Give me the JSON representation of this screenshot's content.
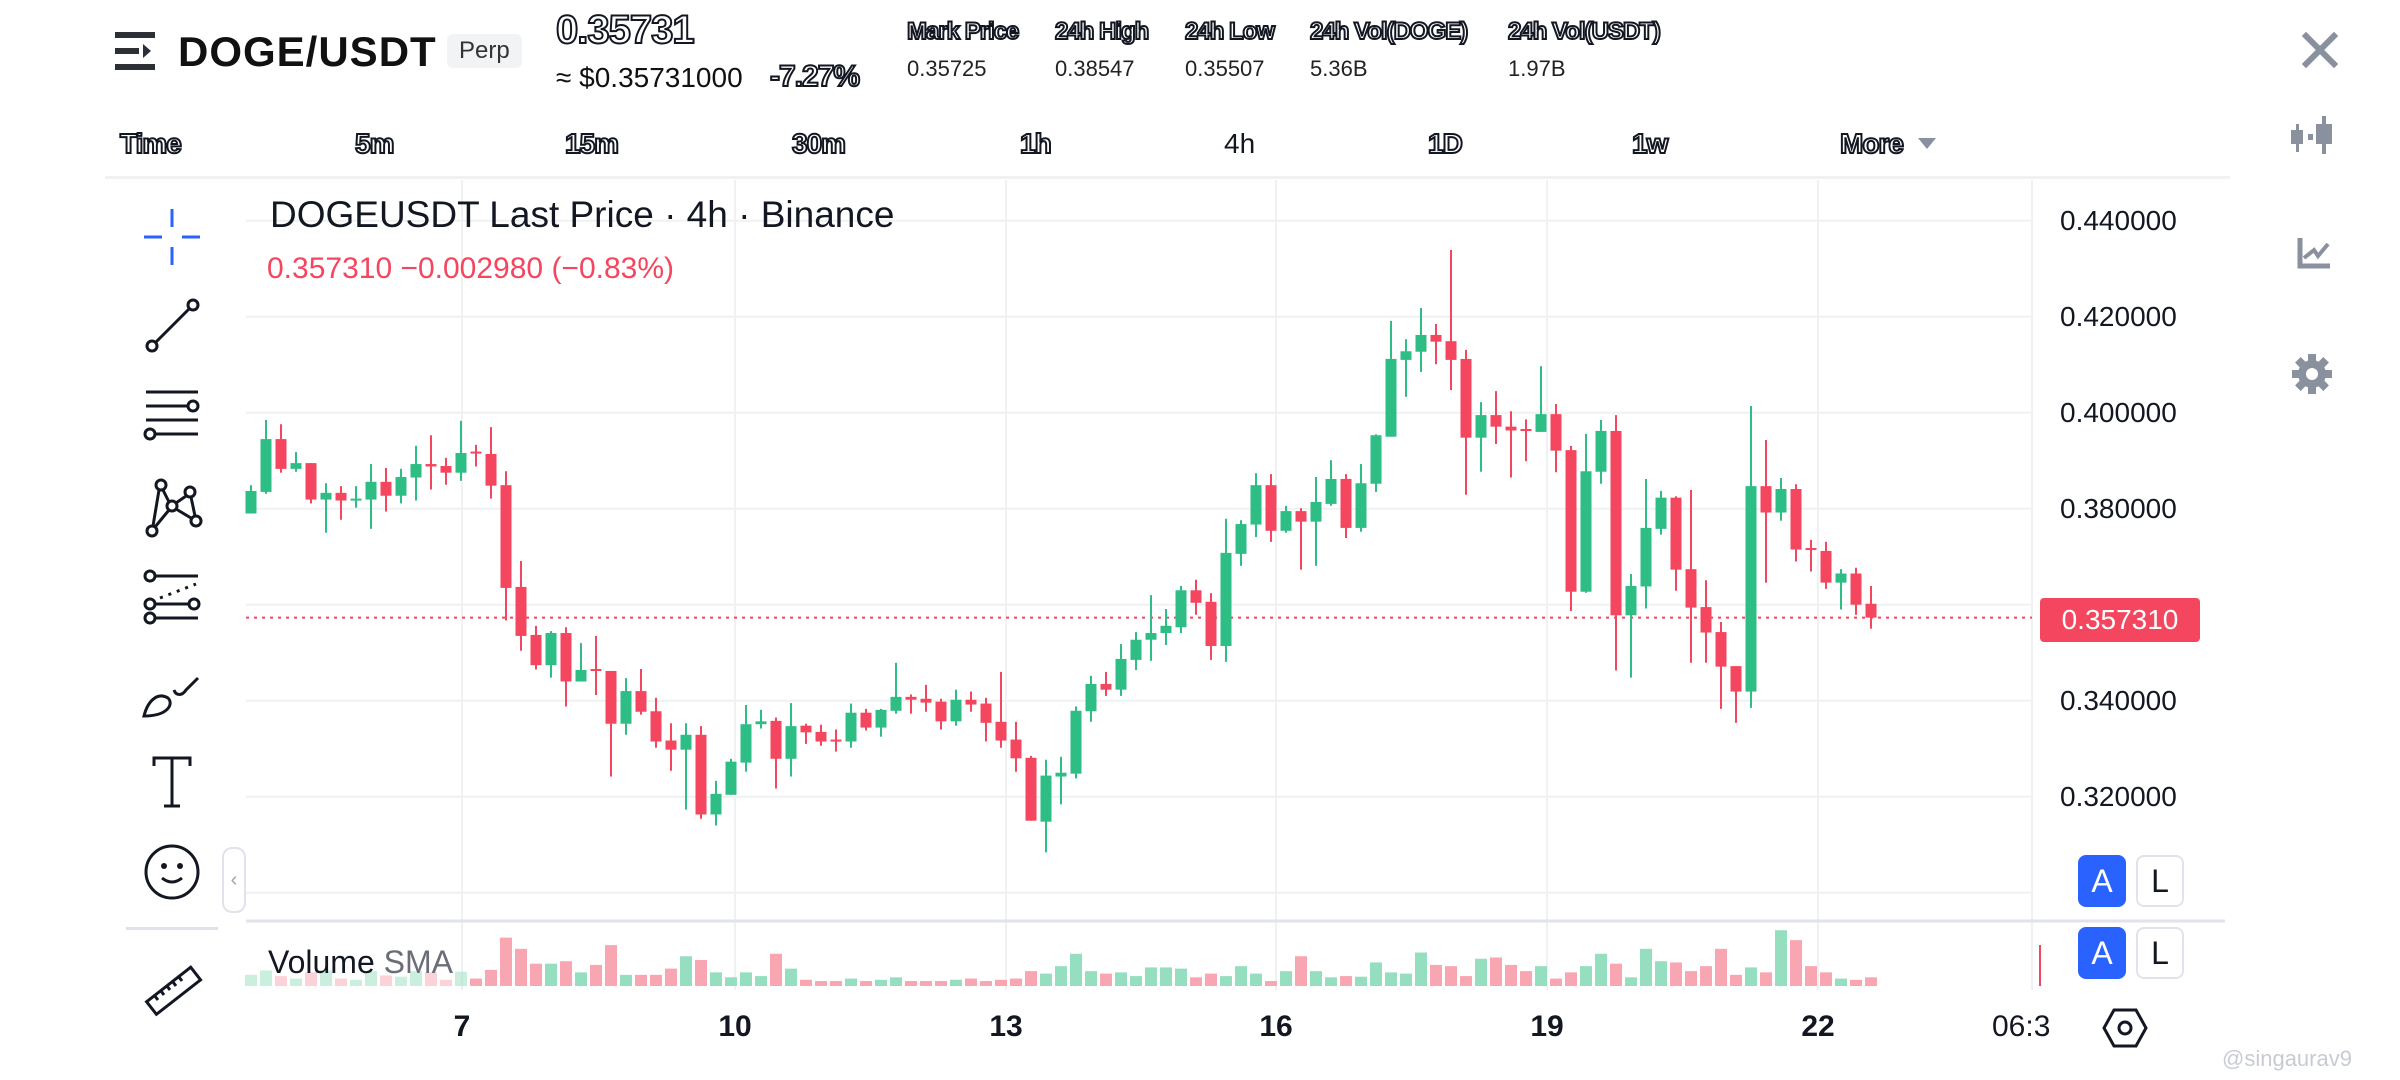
{
  "header": {
    "symbol": "DOGE/USDT",
    "contract_type": "Perp",
    "last_price": "0.35731",
    "usd_price": "≈ $0.35731000",
    "change_pct": "-7.27%",
    "stats": [
      {
        "label": "Mark Price",
        "value": "0.35725"
      },
      {
        "label": "24h High",
        "value": "0.38547"
      },
      {
        "label": "24h Low",
        "value": "0.35507"
      },
      {
        "label": "24h Vol(DOGE)",
        "value": "5.36B"
      },
      {
        "label": "24h Vol(USDT)",
        "value": "1.97B"
      }
    ]
  },
  "timeframes": {
    "items": [
      "Time",
      "5m",
      "15m",
      "30m",
      "1h",
      "4h",
      "1D",
      "1w",
      "More"
    ],
    "selected": "4h"
  },
  "right_icons": [
    "close-icon",
    "candlestick-icon",
    "indicator-icon",
    "gear-icon"
  ],
  "tools": [
    "crosshair-icon",
    "trend-line-icon",
    "horizontal-lines-icon",
    "pattern-icon",
    "fib-channel-icon",
    "brush-icon",
    "text-icon",
    "emoji-icon",
    "ruler-icon"
  ],
  "legend": {
    "title": "DOGEUSDT Last Price · 4h · Binance",
    "change": "0.357310  −0.002980 (−0.83%)"
  },
  "volume_label": {
    "main": "Volume",
    "sma": "SMA"
  },
  "current_price_label": "0.357310",
  "scale_buttons": {
    "auto": "A",
    "log": "L"
  },
  "collapse_glyph": "‹",
  "watermark": "@singaurav9",
  "colors": {
    "up": "#2ebd85",
    "down": "#f4465e",
    "up_vol": "#95dfc0",
    "down_vol": "#f8a6b1",
    "accent": "#2962ff"
  },
  "chart_data": {
    "type": "candlestick",
    "title": "DOGEUSDT Last Price · 4h · Binance",
    "xlabel": "",
    "ylabel": "",
    "y_ticks": [
      "0.440000",
      "0.420000",
      "0.400000",
      "0.380000",
      "0.340000",
      "0.320000"
    ],
    "ylim": [
      0.3,
      0.445
    ],
    "x_ticks": [
      {
        "label": "7",
        "index": 14.0
      },
      {
        "label": "10",
        "index": 32.2
      },
      {
        "label": "13",
        "index": 50.3
      },
      {
        "label": "16",
        "index": 68.2
      },
      {
        "label": "19",
        "index": 86.3
      },
      {
        "label": "22",
        "index": 104.5
      },
      {
        "label": "06:3",
        "index": 115.8
      }
    ],
    "last_price": 0.35731,
    "ohlc": [
      [
        0.379,
        0.3849,
        0.379,
        0.3837
      ],
      [
        0.3835,
        0.3985,
        0.3831,
        0.3945
      ],
      [
        0.3945,
        0.3976,
        0.3875,
        0.3883
      ],
      [
        0.3883,
        0.3918,
        0.3877,
        0.3895
      ],
      [
        0.3895,
        0.3895,
        0.3811,
        0.3819
      ],
      [
        0.3819,
        0.3853,
        0.375,
        0.3833
      ],
      [
        0.3833,
        0.3847,
        0.3777,
        0.3817
      ],
      [
        0.3818,
        0.3847,
        0.3802,
        0.3821
      ],
      [
        0.3819,
        0.3893,
        0.3758,
        0.3856
      ],
      [
        0.3856,
        0.3885,
        0.3794,
        0.3827
      ],
      [
        0.3827,
        0.3883,
        0.3811,
        0.3866
      ],
      [
        0.3865,
        0.3931,
        0.3817,
        0.3893
      ],
      [
        0.3893,
        0.3953,
        0.384,
        0.3888
      ],
      [
        0.3889,
        0.3906,
        0.385,
        0.3875
      ],
      [
        0.3875,
        0.3983,
        0.3858,
        0.3916
      ],
      [
        0.3919,
        0.3933,
        0.3888,
        0.3916
      ],
      [
        0.3914,
        0.397,
        0.3821,
        0.3848
      ],
      [
        0.3849,
        0.3878,
        0.3567,
        0.3635
      ],
      [
        0.3637,
        0.3691,
        0.3504,
        0.3535
      ],
      [
        0.3537,
        0.3556,
        0.3465,
        0.3474
      ],
      [
        0.3474,
        0.3545,
        0.3448,
        0.3541
      ],
      [
        0.3541,
        0.3553,
        0.3388,
        0.344
      ],
      [
        0.344,
        0.352,
        0.344,
        0.3464
      ],
      [
        0.3466,
        0.3535,
        0.3412,
        0.3462
      ],
      [
        0.3462,
        0.3462,
        0.3242,
        0.3352
      ],
      [
        0.3352,
        0.3447,
        0.3329,
        0.342
      ],
      [
        0.342,
        0.3466,
        0.3371,
        0.3377
      ],
      [
        0.3378,
        0.3406,
        0.3302,
        0.3315
      ],
      [
        0.3317,
        0.3353,
        0.3254,
        0.3298
      ],
      [
        0.3298,
        0.3353,
        0.3173,
        0.3329
      ],
      [
        0.3329,
        0.3347,
        0.3154,
        0.3163
      ],
      [
        0.3163,
        0.3233,
        0.314,
        0.3206
      ],
      [
        0.3204,
        0.3279,
        0.3204,
        0.3273
      ],
      [
        0.3271,
        0.3391,
        0.3252,
        0.3351
      ],
      [
        0.3351,
        0.3381,
        0.3342,
        0.3357
      ],
      [
        0.3358,
        0.3365,
        0.3217,
        0.3279
      ],
      [
        0.3279,
        0.3395,
        0.3242,
        0.3347
      ],
      [
        0.3348,
        0.3352,
        0.331,
        0.3334
      ],
      [
        0.3335,
        0.335,
        0.3306,
        0.3315
      ],
      [
        0.3319,
        0.334,
        0.3294,
        0.3316
      ],
      [
        0.3315,
        0.3394,
        0.3302,
        0.3375
      ],
      [
        0.3375,
        0.3383,
        0.3338,
        0.3344
      ],
      [
        0.3344,
        0.3383,
        0.3325,
        0.3381
      ],
      [
        0.3379,
        0.3479,
        0.3373,
        0.3408
      ],
      [
        0.3408,
        0.3413,
        0.3373,
        0.3402
      ],
      [
        0.3404,
        0.3433,
        0.3377,
        0.3396
      ],
      [
        0.3398,
        0.3404,
        0.334,
        0.3357
      ],
      [
        0.3357,
        0.3423,
        0.3348,
        0.3402
      ],
      [
        0.3402,
        0.3419,
        0.3377,
        0.3392
      ],
      [
        0.3394,
        0.3406,
        0.3315,
        0.3354
      ],
      [
        0.3356,
        0.346,
        0.3302,
        0.3317
      ],
      [
        0.3319,
        0.3356,
        0.3252,
        0.328
      ],
      [
        0.3281,
        0.3285,
        0.315,
        0.315
      ],
      [
        0.3148,
        0.3277,
        0.3084,
        0.3244
      ],
      [
        0.3242,
        0.3283,
        0.3184,
        0.325
      ],
      [
        0.3248,
        0.3388,
        0.3238,
        0.3379
      ],
      [
        0.3378,
        0.3452,
        0.3356,
        0.3435
      ],
      [
        0.3435,
        0.346,
        0.341,
        0.3423
      ],
      [
        0.3423,
        0.3518,
        0.341,
        0.3487
      ],
      [
        0.3485,
        0.3543,
        0.3464,
        0.3527
      ],
      [
        0.3527,
        0.362,
        0.3483,
        0.3541
      ],
      [
        0.3541,
        0.3591,
        0.3516,
        0.3556
      ],
      [
        0.3553,
        0.3639,
        0.3541,
        0.363
      ],
      [
        0.363,
        0.3652,
        0.3579,
        0.3604
      ],
      [
        0.3606,
        0.3624,
        0.3485,
        0.3514
      ],
      [
        0.3514,
        0.3779,
        0.3481,
        0.3708
      ],
      [
        0.3706,
        0.3776,
        0.3681,
        0.3768
      ],
      [
        0.3767,
        0.3874,
        0.3741,
        0.3849
      ],
      [
        0.3849,
        0.3872,
        0.3731,
        0.3754
      ],
      [
        0.3754,
        0.3806,
        0.375,
        0.3795
      ],
      [
        0.3795,
        0.3801,
        0.3673,
        0.3773
      ],
      [
        0.3773,
        0.3866,
        0.3681,
        0.3814
      ],
      [
        0.381,
        0.3901,
        0.3806,
        0.3862
      ],
      [
        0.3862,
        0.3872,
        0.3739,
        0.376
      ],
      [
        0.376,
        0.3893,
        0.3752,
        0.3853
      ],
      [
        0.3852,
        0.3955,
        0.3835,
        0.3953
      ],
      [
        0.395,
        0.4191,
        0.395,
        0.4112
      ],
      [
        0.411,
        0.4153,
        0.4033,
        0.4128
      ],
      [
        0.4127,
        0.4218,
        0.4085,
        0.4162
      ],
      [
        0.4162,
        0.4185,
        0.4101,
        0.4148
      ],
      [
        0.4149,
        0.4339,
        0.4047,
        0.411
      ],
      [
        0.4112,
        0.4131,
        0.3829,
        0.3948
      ],
      [
        0.3948,
        0.4022,
        0.3877,
        0.3995
      ],
      [
        0.3995,
        0.4045,
        0.3935,
        0.3971
      ],
      [
        0.3971,
        0.4003,
        0.3865,
        0.3963
      ],
      [
        0.3966,
        0.3986,
        0.3899,
        0.3963
      ],
      [
        0.396,
        0.4097,
        0.396,
        0.3997
      ],
      [
        0.3997,
        0.4018,
        0.3876,
        0.3921
      ],
      [
        0.3922,
        0.3931,
        0.3587,
        0.3627
      ],
      [
        0.3627,
        0.3956,
        0.3625,
        0.3878
      ],
      [
        0.3877,
        0.3985,
        0.3852,
        0.3962
      ],
      [
        0.3962,
        0.3995,
        0.3463,
        0.3578
      ],
      [
        0.3578,
        0.3664,
        0.3448,
        0.3639
      ],
      [
        0.3638,
        0.3862,
        0.3592,
        0.376
      ],
      [
        0.3758,
        0.3837,
        0.3746,
        0.3823
      ],
      [
        0.3823,
        0.3826,
        0.3629,
        0.3673
      ],
      [
        0.3674,
        0.3839,
        0.3479,
        0.3594
      ],
      [
        0.3595,
        0.3651,
        0.3479,
        0.3542
      ],
      [
        0.3543,
        0.3564,
        0.3383,
        0.3471
      ],
      [
        0.3472,
        0.3472,
        0.3354,
        0.3419
      ],
      [
        0.3419,
        0.4014,
        0.3385,
        0.3847
      ],
      [
        0.3847,
        0.3943,
        0.3646,
        0.3792
      ],
      [
        0.3792,
        0.3864,
        0.3775,
        0.3841
      ],
      [
        0.3841,
        0.3851,
        0.369,
        0.3715
      ],
      [
        0.3718,
        0.3735,
        0.3669,
        0.3715
      ],
      [
        0.3712,
        0.3731,
        0.3633,
        0.3646
      ],
      [
        0.3646,
        0.3674,
        0.359,
        0.3665
      ],
      [
        0.3665,
        0.3677,
        0.3579,
        0.36
      ],
      [
        0.3602,
        0.3639,
        0.355,
        0.3573
      ]
    ],
    "volume": [
      18,
      25,
      16,
      12,
      22,
      25,
      12,
      10,
      24,
      17,
      15,
      24,
      22,
      10,
      23,
      12,
      26,
      78,
      60,
      36,
      36,
      40,
      22,
      34,
      66,
      18,
      18,
      18,
      28,
      48,
      42,
      22,
      14,
      22,
      16,
      52,
      28,
      10,
      8,
      8,
      12,
      8,
      10,
      14,
      8,
      8,
      8,
      10,
      12,
      8,
      10,
      12,
      24,
      20,
      32,
      52,
      24,
      20,
      22,
      16,
      30,
      30,
      28,
      14,
      20,
      16,
      32,
      20,
      8,
      24,
      48,
      24,
      14,
      16,
      15,
      38,
      22,
      20,
      54,
      34,
      32,
      16,
      44,
      46,
      34,
      24,
      32,
      12,
      22,
      32,
      52,
      36,
      14,
      60,
      40,
      38,
      24,
      32,
      60,
      18,
      30,
      22,
      90,
      74,
      32,
      22,
      12,
      10,
      14,
      16,
      12
    ]
  }
}
